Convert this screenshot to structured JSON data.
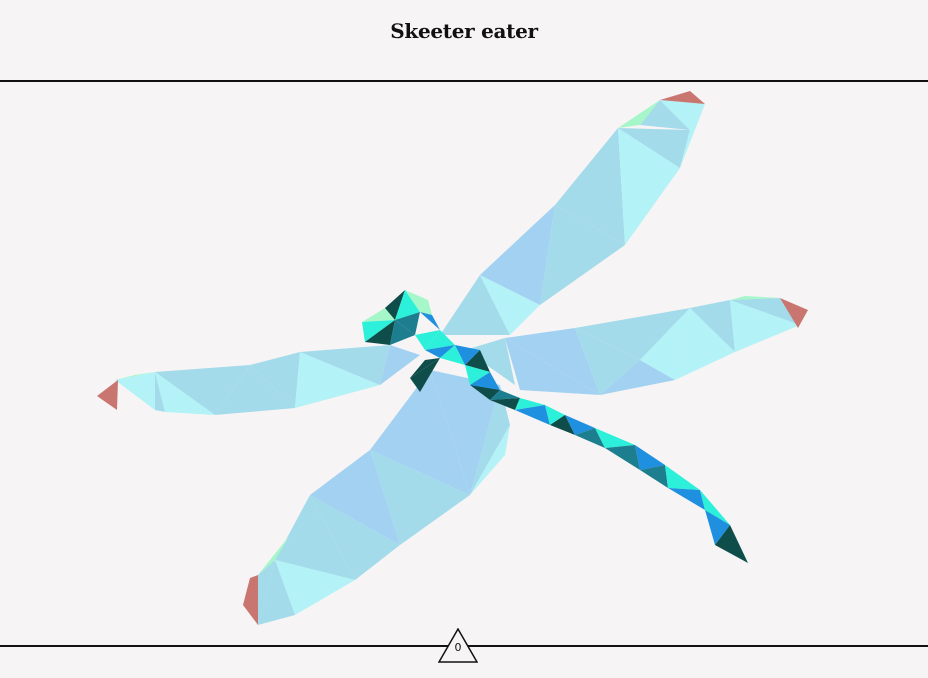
{
  "header": {
    "title": "Skeeter eater"
  },
  "footer": {
    "counter_value": "0"
  },
  "palette": {
    "wing_light": "#b3f2f7",
    "wing_mid": "#a3dbeb",
    "wing_blue": "#a2d1f2",
    "wing_tip_green": "#a5f7c9",
    "wing_tip_red": "#c97670",
    "body_teal": "#2cf0d9",
    "body_blue": "#1f8fe0",
    "body_dark": "#0f4d4a",
    "body_mid": "#1c7e8f",
    "background": "#f6f4f5"
  }
}
